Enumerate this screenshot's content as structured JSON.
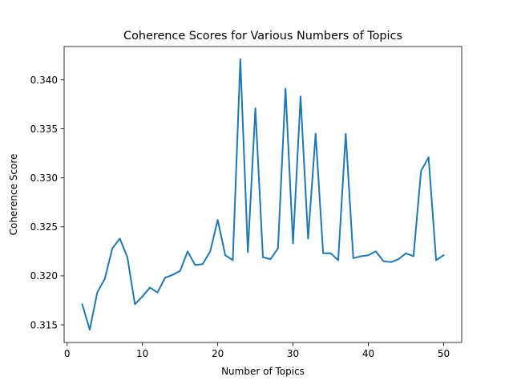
{
  "chart_data": {
    "type": "line",
    "title": "Coherence Scores for Various Numbers of Topics",
    "xlabel": "Number of Topics",
    "ylabel": "Coherence Score",
    "xlim": [
      -0.4,
      52.4
    ],
    "ylim": [
      0.3132,
      0.3434
    ],
    "xticks": [
      0,
      10,
      20,
      30,
      40,
      50
    ],
    "yticks": [
      0.315,
      0.32,
      0.325,
      0.33,
      0.335,
      0.34
    ],
    "ytick_labels": [
      "0.315",
      "0.320",
      "0.325",
      "0.330",
      "0.335",
      "0.340"
    ],
    "grid": false,
    "series": [
      {
        "color": "#1f77b4",
        "x": [
          2,
          3,
          4,
          5,
          6,
          7,
          8,
          9,
          10,
          11,
          12,
          13,
          14,
          15,
          16,
          17,
          18,
          19,
          20,
          21,
          22,
          23,
          24,
          25,
          26,
          27,
          28,
          29,
          30,
          31,
          32,
          33,
          34,
          35,
          36,
          37,
          38,
          39,
          40,
          41,
          42,
          43,
          44,
          45,
          46,
          47,
          48,
          49,
          50
        ],
        "y": [
          0.3171,
          0.3145,
          0.3183,
          0.3197,
          0.3228,
          0.3238,
          0.3219,
          0.3171,
          0.3179,
          0.3188,
          0.3183,
          0.3198,
          0.3201,
          0.3205,
          0.3225,
          0.3211,
          0.3212,
          0.3225,
          0.3257,
          0.3221,
          0.3216,
          0.3421,
          0.3224,
          0.3371,
          0.3219,
          0.3217,
          0.3228,
          0.3391,
          0.3233,
          0.3383,
          0.3238,
          0.3345,
          0.3223,
          0.3223,
          0.3216,
          0.3345,
          0.3218,
          0.322,
          0.3221,
          0.3225,
          0.3215,
          0.3214,
          0.3217,
          0.3223,
          0.322,
          0.3307,
          0.3321,
          0.3216,
          0.3221
        ]
      }
    ]
  }
}
